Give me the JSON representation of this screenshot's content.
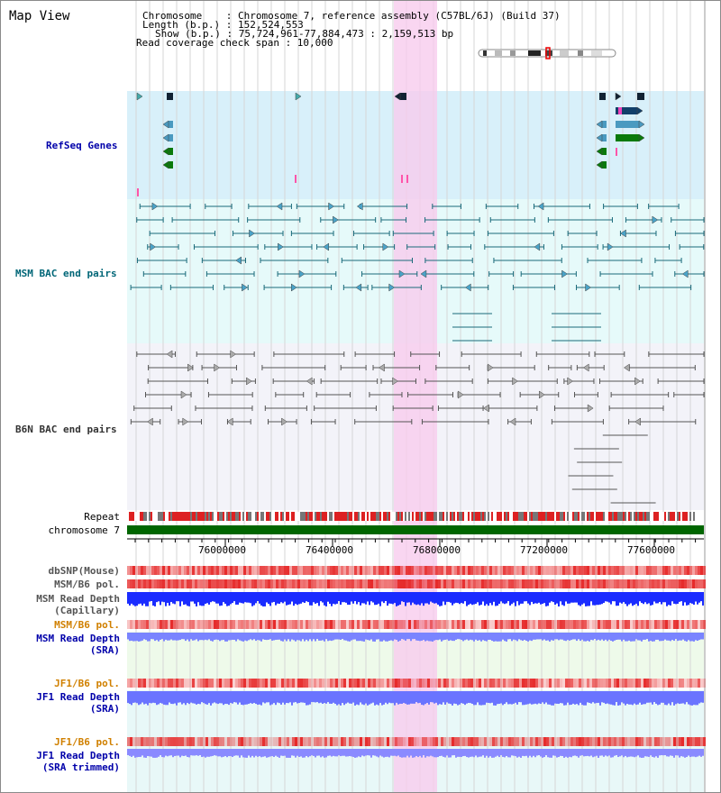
{
  "title": "Map View",
  "header": {
    "line1": "Chromosome    : Chromosome 7, reference assembly (C57BL/6J) (Build 37)",
    "line2": "Length (b.p.) : 152,524,553",
    "line3": "Show (b.p.) : 75,724,961-77,884,473 : 2,159,513 bp",
    "line4": "Read coverage check span : 10,000"
  },
  "tracks": {
    "refseq": "RefSeq Genes",
    "msm_bac": "MSM BAC end pairs",
    "b6n_bac": "B6N BAC end pairs",
    "repeat": "Repeat",
    "chromosome": "chromosome 7",
    "dbsnp": "dbSNP(Mouse)",
    "msm_b6_pol_1": "MSM/B6 pol.",
    "msm_depth_cap_1": "MSM Read Depth",
    "msm_depth_cap_2": "(Capillary)",
    "msm_b6_pol_2": "MSM/B6 pol.",
    "msm_depth_sra_1": "MSM Read Depth",
    "msm_depth_sra_2": "(SRA)",
    "jf1_b6_pol_1": "JF1/B6 pol.",
    "jf1_depth_sra_1": "JF1 Read Depth",
    "jf1_depth_sra_2": "(SRA)",
    "jf1_b6_pol_2": "JF1/B6 pol.",
    "jf1_depth_trim_1": "JF1 Read Depth",
    "jf1_depth_trim_2": "(SRA trimmed)"
  },
  "ruler": {
    "ticks": [
      "76000000",
      "76400000",
      "76800000",
      "77200000",
      "77600000"
    ]
  },
  "colors": {
    "refseq_label": "#0000aa",
    "msm_label": "#006677",
    "b6n_label": "#333333",
    "pol_label": "#d08000",
    "depth_label": "#0000aa",
    "highlight": "#f7ccee",
    "chromosome_bar": "#006600"
  }
}
